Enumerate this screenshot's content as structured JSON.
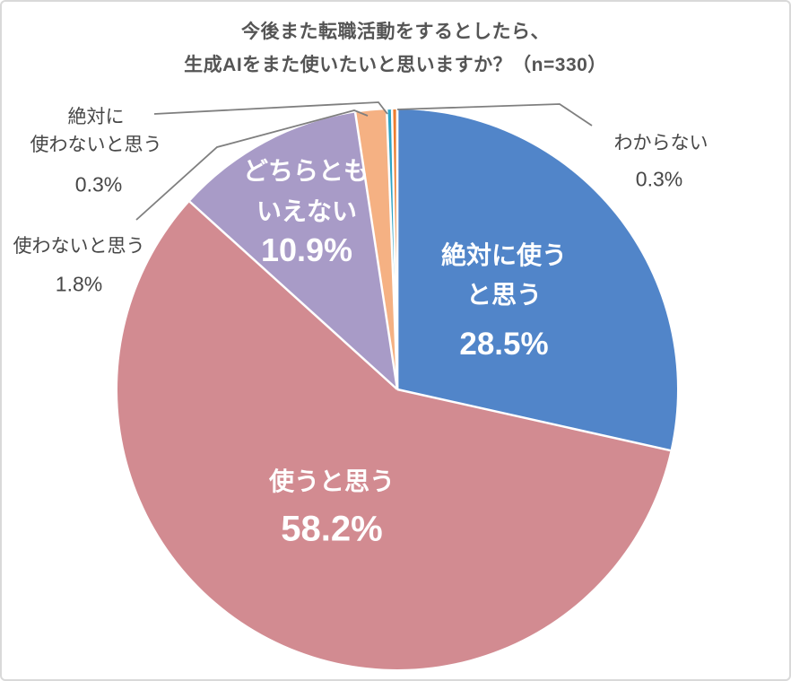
{
  "title": {
    "line1": "今後また転職活動をするとしたら、",
    "line2": "生成AIをまた使いたいと思いますか？（n=330）"
  },
  "chart_data": {
    "type": "pie",
    "title": "今後また転職活動をするとしたら、生成AIをまた使いたいと思いますか？（n=330）",
    "n": 330,
    "start_angle_deg": 0,
    "direction": "clockwise",
    "background_color": "#FFFFFF",
    "separator_color": "#FFFFFF",
    "leader_line_color": "#7F7F7F",
    "title_color": "#555555",
    "outside_label_color": "#474747",
    "slices": [
      {
        "key": "definitely-use",
        "name": "絶対に使うと思う",
        "value_pct": 28.5,
        "pct_label": "28.5%",
        "color": "#5185C9",
        "label_placement": "inside",
        "label_lines": [
          "絶対に使う",
          "と思う"
        ]
      },
      {
        "key": "will-use",
        "name": "使うと思う",
        "value_pct": 58.2,
        "pct_label": "58.2%",
        "color": "#D28B91",
        "label_placement": "inside",
        "label_lines": [
          "使うと思う"
        ]
      },
      {
        "key": "neutral",
        "name": "どちらともいえない",
        "value_pct": 10.9,
        "pct_label": "10.9%",
        "color": "#A89BC7",
        "label_placement": "inside",
        "label_lines": [
          "どちらとも",
          "いえない"
        ]
      },
      {
        "key": "wont-use",
        "name": "使わないと思う",
        "value_pct": 1.8,
        "pct_label": "1.8%",
        "color": "#F5B183",
        "label_placement": "outside-left",
        "label_lines": [
          "使わないと思う"
        ]
      },
      {
        "key": "definitely-wont-use",
        "name": "絶対に使わないと思う",
        "value_pct": 0.3,
        "pct_label": "0.3%",
        "color": "#2EA3C4",
        "label_placement": "outside-left",
        "label_lines": [
          "絶対に",
          "使わないと思う"
        ]
      },
      {
        "key": "dont-know",
        "name": "わからない",
        "value_pct": 0.3,
        "pct_label": "0.3%",
        "color": "#ED7D31",
        "label_placement": "outside-right",
        "label_lines": [
          "わからない"
        ]
      }
    ]
  }
}
